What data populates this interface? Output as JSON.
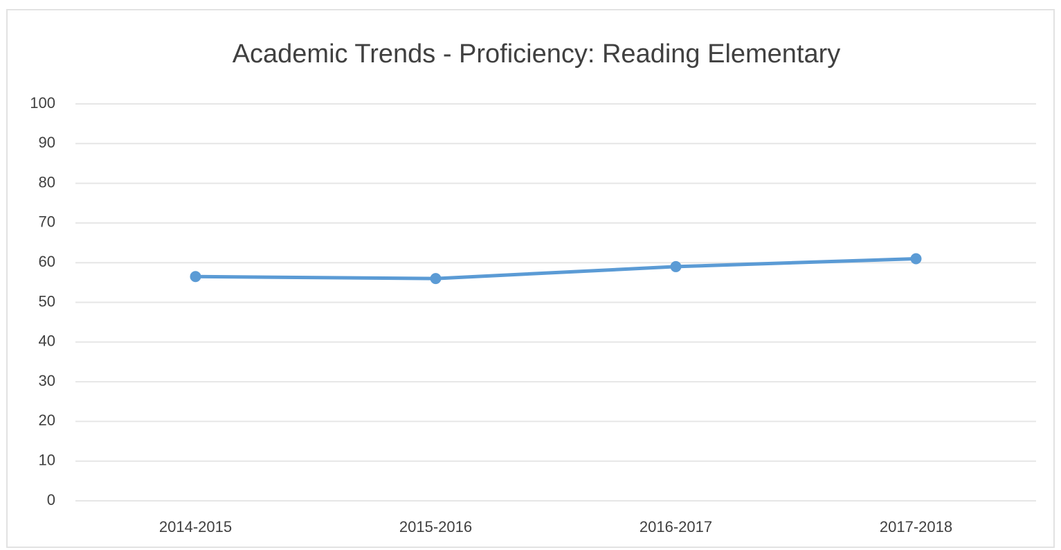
{
  "chart_data": {
    "type": "line",
    "title": "Academic Trends - Proficiency: Reading Elementary",
    "categories": [
      "2014-2015",
      "2015-2016",
      "2016-2017",
      "2017-2018"
    ],
    "series": [
      {
        "name": "Reading Elementary",
        "color": "#5b9bd5",
        "values": [
          56.5,
          56,
          59,
          61
        ]
      }
    ],
    "ylim": [
      0,
      100
    ],
    "yticks": [
      0,
      10,
      20,
      30,
      40,
      50,
      60,
      70,
      80,
      90,
      100
    ],
    "grid": true
  }
}
